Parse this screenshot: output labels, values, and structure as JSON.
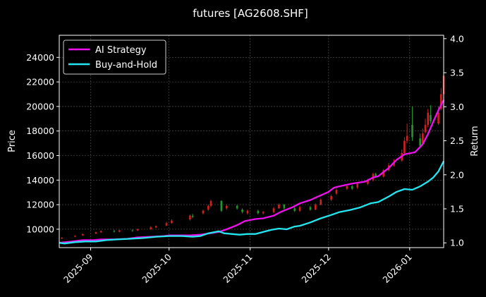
{
  "chart_data": {
    "type": "line",
    "title": "futures [AG2608.SHF]",
    "xlabel": "",
    "ylabel": "Price",
    "y2label": "Return",
    "x_ticks": [
      "2025-09",
      "2025-10",
      "2025-11",
      "2025-12",
      "2026-01"
    ],
    "x_range": [
      "2025-08-20",
      "2026-01-14"
    ],
    "y_ticks": [
      10000,
      12000,
      14000,
      16000,
      18000,
      20000,
      22000,
      24000
    ],
    "ylim": [
      8500,
      25800
    ],
    "y2_ticks": [
      1.0,
      1.5,
      2.0,
      2.5,
      3.0,
      3.5,
      4.0
    ],
    "y2lim": [
      0.93,
      4.05
    ],
    "grid": true,
    "legend_position": "top-left",
    "colors": {
      "background": "#000000",
      "strategy": "#ee11ee",
      "buy_hold": "#22e6f0",
      "candle_up": "#d42020",
      "candle_down": "#1f9a2a",
      "grid": "#5a5a5a",
      "axis": "#ffffff"
    },
    "series": [
      {
        "name": "AI Strategy",
        "axis": "right",
        "points": [
          [
            "2025-08-20",
            1.0
          ],
          [
            "2025-08-25",
            1.02
          ],
          [
            "2025-08-29",
            1.04
          ],
          [
            "2025-09-02",
            1.04
          ],
          [
            "2025-09-05",
            1.05
          ],
          [
            "2025-09-10",
            1.05
          ],
          [
            "2025-09-15",
            1.06
          ],
          [
            "2025-09-19",
            1.08
          ],
          [
            "2025-09-24",
            1.09
          ],
          [
            "2025-09-29",
            1.1
          ],
          [
            "2025-10-01",
            1.11
          ],
          [
            "2025-10-09",
            1.11
          ],
          [
            "2025-10-13",
            1.12
          ],
          [
            "2025-10-15",
            1.13
          ],
          [
            "2025-10-20",
            1.16
          ],
          [
            "2025-10-23",
            1.2
          ],
          [
            "2025-10-27",
            1.26
          ],
          [
            "2025-10-30",
            1.32
          ],
          [
            "2025-11-03",
            1.35
          ],
          [
            "2025-11-06",
            1.36
          ],
          [
            "2025-11-10",
            1.4
          ],
          [
            "2025-11-13",
            1.46
          ],
          [
            "2025-11-17",
            1.52
          ],
          [
            "2025-11-20",
            1.58
          ],
          [
            "2025-11-24",
            1.63
          ],
          [
            "2025-11-27",
            1.68
          ],
          [
            "2025-12-01",
            1.75
          ],
          [
            "2025-12-03",
            1.81
          ],
          [
            "2025-12-05",
            1.83
          ],
          [
            "2025-12-10",
            1.87
          ],
          [
            "2025-12-15",
            1.9
          ],
          [
            "2025-12-18",
            1.96
          ],
          [
            "2025-12-20",
            1.98
          ],
          [
            "2025-12-24",
            2.1
          ],
          [
            "2025-12-27",
            2.22
          ],
          [
            "2025-12-30",
            2.3
          ],
          [
            "2026-01-03",
            2.33
          ],
          [
            "2026-01-06",
            2.45
          ],
          [
            "2026-01-08",
            2.6
          ],
          [
            "2026-01-10",
            2.78
          ],
          [
            "2026-01-12",
            2.95
          ],
          [
            "2026-01-14",
            3.1
          ]
        ]
      },
      {
        "name": "Buy-and-Hold",
        "axis": "right",
        "points": [
          [
            "2025-08-20",
            1.0
          ],
          [
            "2025-08-22",
            0.99
          ],
          [
            "2025-08-26",
            1.01
          ],
          [
            "2025-08-30",
            1.02
          ],
          [
            "2025-09-03",
            1.02
          ],
          [
            "2025-09-07",
            1.04
          ],
          [
            "2025-09-11",
            1.05
          ],
          [
            "2025-09-16",
            1.06
          ],
          [
            "2025-09-21",
            1.07
          ],
          [
            "2025-09-26",
            1.09
          ],
          [
            "2025-10-01",
            1.1
          ],
          [
            "2025-10-06",
            1.1
          ],
          [
            "2025-10-10",
            1.09
          ],
          [
            "2025-10-13",
            1.1
          ],
          [
            "2025-10-16",
            1.14
          ],
          [
            "2025-10-20",
            1.17
          ],
          [
            "2025-10-22",
            1.14
          ],
          [
            "2025-10-25",
            1.13
          ],
          [
            "2025-10-28",
            1.12
          ],
          [
            "2025-10-31",
            1.13
          ],
          [
            "2025-11-03",
            1.13
          ],
          [
            "2025-11-06",
            1.16
          ],
          [
            "2025-11-09",
            1.19
          ],
          [
            "2025-11-12",
            1.21
          ],
          [
            "2025-11-15",
            1.2
          ],
          [
            "2025-11-18",
            1.24
          ],
          [
            "2025-11-20",
            1.25
          ],
          [
            "2025-11-24",
            1.3
          ],
          [
            "2025-11-28",
            1.36
          ],
          [
            "2025-12-02",
            1.41
          ],
          [
            "2025-12-05",
            1.45
          ],
          [
            "2025-12-09",
            1.48
          ],
          [
            "2025-12-13",
            1.52
          ],
          [
            "2025-12-17",
            1.58
          ],
          [
            "2025-12-20",
            1.6
          ],
          [
            "2025-12-24",
            1.68
          ],
          [
            "2025-12-27",
            1.75
          ],
          [
            "2025-12-30",
            1.79
          ],
          [
            "2026-01-02",
            1.78
          ],
          [
            "2026-01-05",
            1.83
          ],
          [
            "2026-01-08",
            1.9
          ],
          [
            "2026-01-10",
            1.96
          ],
          [
            "2026-01-12",
            2.05
          ],
          [
            "2026-01-14",
            2.2
          ]
        ]
      }
    ],
    "candles": {
      "name": "Price",
      "axis": "left",
      "points": [
        [
          "2025-08-21",
          9250,
          9300,
          9200,
          9350
        ],
        [
          "2025-08-26",
          9400,
          9450,
          9350,
          9500
        ],
        [
          "2025-08-29",
          9500,
          9600,
          9450,
          9650
        ],
        [
          "2025-09-03",
          9650,
          9750,
          9600,
          9800
        ],
        [
          "2025-09-05",
          9750,
          9850,
          9700,
          9900
        ],
        [
          "2025-09-10",
          9850,
          9800,
          9750,
          9950
        ],
        [
          "2025-09-12",
          9800,
          9900,
          9750,
          9950
        ],
        [
          "2025-09-17",
          9900,
          9850,
          9800,
          10000
        ],
        [
          "2025-09-19",
          9900,
          10000,
          9850,
          10050
        ],
        [
          "2025-09-24",
          10000,
          10150,
          9950,
          10250
        ],
        [
          "2025-09-26",
          10150,
          10250,
          10100,
          10300
        ],
        [
          "2025-09-30",
          10300,
          10500,
          10250,
          10600
        ],
        [
          "2025-10-02",
          10500,
          10700,
          10450,
          10800
        ],
        [
          "2025-10-09",
          10800,
          11100,
          10700,
          11200
        ],
        [
          "2025-10-10",
          11100,
          11000,
          10900,
          11250
        ],
        [
          "2025-10-14",
          11300,
          11500,
          11200,
          11600
        ],
        [
          "2025-10-16",
          11600,
          11900,
          11500,
          12000
        ],
        [
          "2025-10-17",
          11900,
          12300,
          11800,
          12400
        ],
        [
          "2025-10-21",
          12300,
          11500,
          11400,
          12350
        ],
        [
          "2025-10-23",
          11700,
          11900,
          11600,
          12000
        ],
        [
          "2025-10-27",
          11900,
          11700,
          11600,
          12000
        ],
        [
          "2025-10-29",
          11600,
          11400,
          11300,
          11700
        ],
        [
          "2025-10-31",
          11300,
          11500,
          11200,
          11600
        ],
        [
          "2025-11-04",
          11500,
          11300,
          11200,
          11600
        ],
        [
          "2025-11-06",
          11300,
          11400,
          11200,
          11500
        ],
        [
          "2025-11-10",
          11400,
          11700,
          11300,
          11800
        ],
        [
          "2025-11-12",
          11700,
          12000,
          11650,
          12100
        ],
        [
          "2025-11-14",
          12000,
          11700,
          11600,
          12050
        ],
        [
          "2025-11-18",
          11700,
          11500,
          11400,
          11800
        ],
        [
          "2025-11-20",
          11500,
          11800,
          11400,
          11900
        ],
        [
          "2025-11-24",
          11800,
          11600,
          11500,
          11900
        ],
        [
          "2025-11-26",
          11600,
          12000,
          11550,
          12100
        ],
        [
          "2025-11-28",
          12000,
          12400,
          11950,
          12500
        ],
        [
          "2025-12-02",
          12400,
          12700,
          12300,
          12800
        ],
        [
          "2025-12-04",
          12900,
          13200,
          12800,
          13300
        ],
        [
          "2025-12-08",
          13300,
          13500,
          13200,
          13600
        ],
        [
          "2025-12-10",
          13500,
          13300,
          13200,
          13600
        ],
        [
          "2025-12-12",
          13400,
          13700,
          13300,
          13800
        ],
        [
          "2025-12-16",
          13700,
          14000,
          13600,
          14100
        ],
        [
          "2025-12-18",
          14000,
          14500,
          13900,
          14600
        ],
        [
          "2025-12-19",
          14500,
          14300,
          14200,
          14600
        ],
        [
          "2025-12-22",
          14300,
          14800,
          14200,
          14900
        ],
        [
          "2025-12-24",
          14800,
          15200,
          14700,
          15400
        ],
        [
          "2025-12-26",
          15200,
          15500,
          15100,
          15700
        ],
        [
          "2025-12-29",
          15600,
          16200,
          15500,
          16500
        ],
        [
          "2025-12-30",
          16200,
          17200,
          16100,
          17500
        ],
        [
          "2025-12-31",
          17200,
          17600,
          17000,
          18600
        ],
        [
          "2026-01-02",
          18500,
          17500,
          17200,
          20000
        ],
        [
          "2026-01-05",
          17400,
          16800,
          16700,
          17800
        ],
        [
          "2026-01-06",
          17000,
          17800,
          16900,
          18200
        ],
        [
          "2026-01-07",
          17900,
          18500,
          17800,
          19000
        ],
        [
          "2026-01-08",
          18500,
          19500,
          18300,
          19800
        ],
        [
          "2026-01-09",
          19300,
          18800,
          18600,
          20100
        ],
        [
          "2026-01-12",
          18600,
          19500,
          18500,
          20000
        ],
        [
          "2026-01-13",
          19800,
          21000,
          19700,
          21500
        ],
        [
          "2026-01-14",
          21000,
          22500,
          20800,
          23200
        ]
      ]
    }
  }
}
